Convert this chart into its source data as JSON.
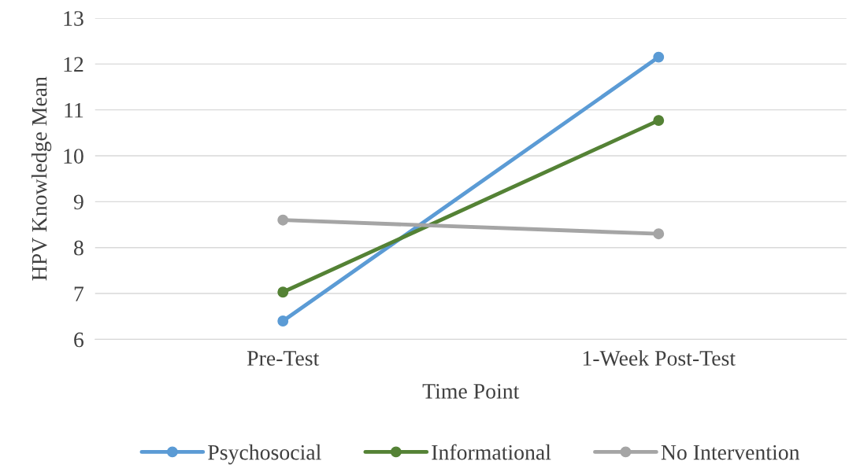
{
  "chart_data": {
    "type": "line",
    "xlabel": "Time Point",
    "ylabel": "HPV Knowledge Mean",
    "categories": [
      "Pre-Test",
      "1-Week Post-Test"
    ],
    "series": [
      {
        "name": "Psychosocial",
        "color": "#5b9bd5",
        "values": [
          6.4,
          12.15
        ]
      },
      {
        "name": "Informational",
        "color": "#548235",
        "values": [
          7.03,
          10.77
        ]
      },
      {
        "name": "No Intervention",
        "color": "#a5a5a5",
        "values": [
          8.6,
          8.3
        ]
      }
    ],
    "ylim": [
      6,
      13
    ],
    "yticks": [
      6,
      7,
      8,
      9,
      10,
      11,
      12,
      13
    ],
    "grid": "y",
    "legend": "bottom",
    "marker": "circle",
    "line_style": "solid"
  }
}
